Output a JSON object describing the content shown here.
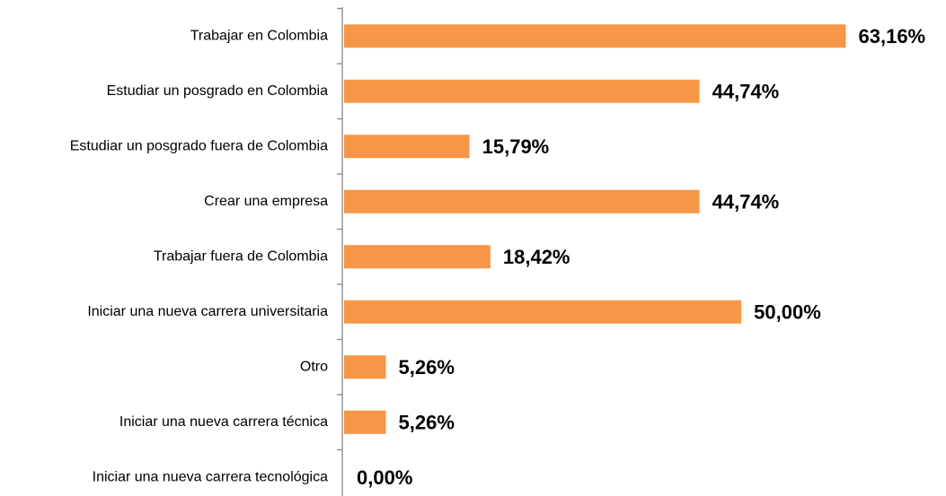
{
  "chart_data": {
    "type": "barh",
    "categories": [
      "Trabajar en Colombia",
      "Estudiar un posgrado en Colombia",
      "Estudiar un posgrado fuera de Colombia",
      "Crear una empresa",
      "Trabajar fuera de Colombia",
      "Iniciar una nueva carrera universitaria",
      "Otro",
      "Iniciar una nueva carrera técnica",
      "Iniciar una nueva carrera tecnológica"
    ],
    "values": [
      63.16,
      44.74,
      15.79,
      44.74,
      18.42,
      50.0,
      5.26,
      5.26,
      0.0
    ],
    "value_labels": [
      "63,16%",
      "44,74%",
      "15,79%",
      "44,74%",
      "18,42%",
      "50,00%",
      "5,26%",
      "5,26%",
      "0,00%"
    ],
    "color": "#f79646",
    "xlim": [
      0,
      70
    ]
  }
}
